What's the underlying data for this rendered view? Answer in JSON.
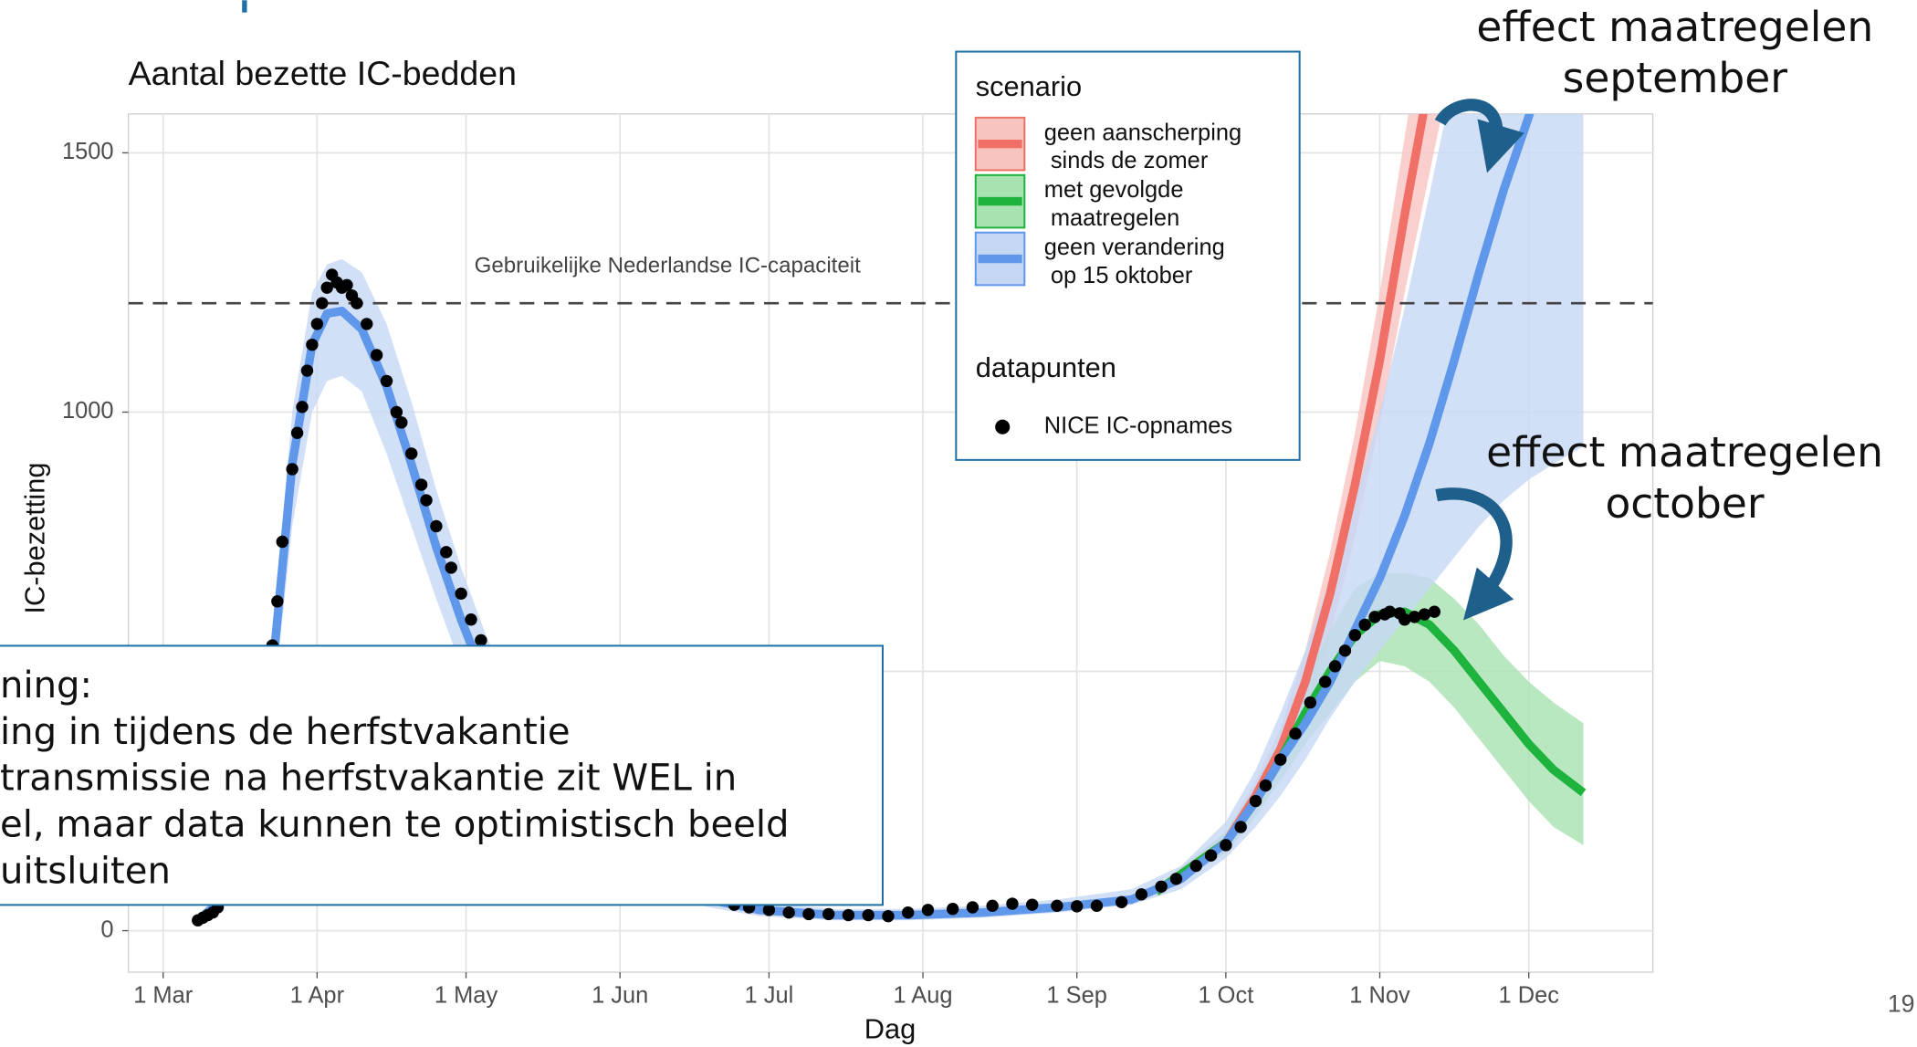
{
  "chart_data": {
    "type": "line",
    "title": "Aantal bezette IC-bedden",
    "xlabel": "Dag",
    "ylabel": "IC-bezetting",
    "xlim": [
      -7,
      300
    ],
    "ylim": [
      -80,
      1575
    ],
    "xticks": [
      {
        "value": 0,
        "label": "1 Mar"
      },
      {
        "value": 31,
        "label": "1 Apr"
      },
      {
        "value": 61,
        "label": "1 May"
      },
      {
        "value": 92,
        "label": "1 Jun"
      },
      {
        "value": 122,
        "label": "1 Jul"
      },
      {
        "value": 153,
        "label": "1 Aug"
      },
      {
        "value": 184,
        "label": "1 Sep"
      },
      {
        "value": 214,
        "label": "1 Oct"
      },
      {
        "value": 245,
        "label": "1 Nov"
      },
      {
        "value": 275,
        "label": "1 Dec"
      }
    ],
    "yticks": [
      0,
      500,
      1000,
      1500
    ],
    "grid": true,
    "reference_line": {
      "value": 1210,
      "label": "Gebruikelijke Nederlandse IC-capaciteit"
    },
    "legend": {
      "title": "scenario",
      "position": "top-right"
    },
    "points_legend_title": "datapunten",
    "series": [
      {
        "name": "geen aanscherping\n sinds de zomer",
        "color": "#f07068",
        "band_color": "#f8c4c0",
        "x": [
          200,
          214,
          220,
          225,
          230,
          235,
          240,
          245,
          250,
          255,
          260
        ],
        "values": [
          75,
          170,
          260,
          350,
          480,
          650,
          860,
          1100,
          1380,
          1640,
          1900
        ],
        "lower": [
          65,
          150,
          230,
          310,
          420,
          570,
          760,
          980,
          1230,
          1460,
          1690
        ],
        "upper": [
          85,
          190,
          290,
          390,
          540,
          730,
          960,
          1230,
          1530,
          1820,
          2110
        ]
      },
      {
        "name": "met gevolgde\n maatregelen",
        "color": "#1db33d",
        "band_color": "#a8e2b0",
        "x": [
          200,
          214,
          220,
          225,
          230,
          235,
          240,
          245,
          250,
          255,
          260,
          265,
          270,
          275,
          280,
          286
        ],
        "values": [
          75,
          170,
          250,
          330,
          420,
          500,
          570,
          610,
          615,
          590,
          540,
          480,
          420,
          360,
          310,
          266
        ],
        "lower": [
          65,
          150,
          220,
          290,
          360,
          420,
          480,
          520,
          510,
          480,
          430,
          370,
          310,
          250,
          200,
          165
        ],
        "upper": [
          85,
          190,
          280,
          370,
          480,
          580,
          660,
          690,
          690,
          680,
          640,
          590,
          530,
          480,
          440,
          400
        ]
      },
      {
        "name": "geen verandering\n op 15 oktober",
        "color": "#5f97ea",
        "band_color": "#c5d7f5",
        "x": [
          7,
          12,
          17,
          22,
          26,
          30,
          33,
          36,
          40,
          45,
          50,
          55,
          60,
          65,
          70,
          80,
          90,
          100,
          110,
          120,
          135,
          150,
          165,
          180,
          195,
          205,
          214,
          220,
          225,
          230,
          235,
          240,
          245,
          250,
          255,
          260,
          265,
          270,
          275,
          280,
          286
        ],
        "values": [
          20,
          60,
          200,
          500,
          900,
          1130,
          1190,
          1195,
          1160,
          1050,
          900,
          740,
          600,
          480,
          380,
          240,
          150,
          95,
          60,
          40,
          30,
          30,
          35,
          45,
          60,
          100,
          170,
          250,
          330,
          400,
          480,
          580,
          680,
          800,
          940,
          1100,
          1270,
          1430,
          1570,
          1720,
          1900
        ],
        "lower": [
          10,
          40,
          150,
          420,
          780,
          1000,
          1060,
          1070,
          1040,
          920,
          780,
          640,
          510,
          400,
          310,
          190,
          115,
          70,
          45,
          28,
          20,
          20,
          25,
          35,
          50,
          80,
          140,
          200,
          260,
          330,
          410,
          480,
          540,
          600,
          660,
          720,
          780,
          830,
          870,
          900,
          934
        ],
        "upper": [
          30,
          80,
          250,
          570,
          1000,
          1230,
          1285,
          1295,
          1270,
          1170,
          1020,
          850,
          700,
          570,
          460,
          300,
          190,
          125,
          80,
          55,
          42,
          42,
          48,
          60,
          80,
          125,
          210,
          310,
          420,
          540,
          680,
          830,
          1000,
          1200,
          1420,
          1650,
          1900,
          2150,
          2400,
          2650,
          3000
        ]
      }
    ],
    "points": {
      "name": "NICE IC-opnames",
      "color": "#000000",
      "x": [
        7,
        8,
        9,
        10,
        11,
        13,
        16,
        19,
        22,
        23,
        24,
        26,
        27,
        28,
        29,
        30,
        31,
        32,
        33,
        34,
        35,
        36,
        37,
        38,
        39,
        41,
        43,
        45,
        47,
        48,
        50,
        52,
        53,
        55,
        57,
        58,
        60,
        62,
        64,
        70,
        80,
        90,
        100,
        108,
        115,
        118,
        122,
        126,
        130,
        134,
        138,
        142,
        146,
        150,
        154,
        159,
        163,
        167,
        171,
        175,
        180,
        184,
        188,
        193,
        197,
        201,
        204,
        208,
        211,
        214,
        217,
        220,
        222,
        225,
        228,
        231,
        234,
        236,
        238,
        240,
        242,
        244,
        246,
        247,
        249,
        250,
        252,
        254,
        256
      ],
      "values": [
        20,
        25,
        30,
        35,
        45,
        70,
        180,
        350,
        550,
        635,
        750,
        890,
        960,
        1010,
        1080,
        1130,
        1170,
        1210,
        1240,
        1265,
        1250,
        1240,
        1245,
        1225,
        1210,
        1170,
        1110,
        1060,
        1000,
        980,
        920,
        860,
        830,
        780,
        730,
        700,
        650,
        600,
        560,
        430,
        250,
        150,
        95,
        65,
        50,
        45,
        40,
        35,
        32,
        32,
        30,
        30,
        28,
        35,
        40,
        42,
        45,
        48,
        52,
        50,
        48,
        47,
        48,
        55,
        70,
        85,
        100,
        125,
        145,
        165,
        200,
        250,
        280,
        330,
        380,
        440,
        480,
        510,
        540,
        570,
        590,
        605,
        610,
        615,
        612,
        600,
        605,
        610,
        615
      ]
    }
  },
  "annotations": [
    {
      "lines": [
        "effect maatregelen",
        "september"
      ]
    },
    {
      "lines": [
        "effect maatregelen",
        "october"
      ]
    }
  ],
  "note": {
    "lines": [
      "ning:",
      "ing in tijdens de herfstvakantie",
      " transmissie na herfstvakantie zit WEL in",
      "el, maar data kunnen te optimistisch beeld",
      "uitsluiten"
    ]
  },
  "page_number": "19"
}
